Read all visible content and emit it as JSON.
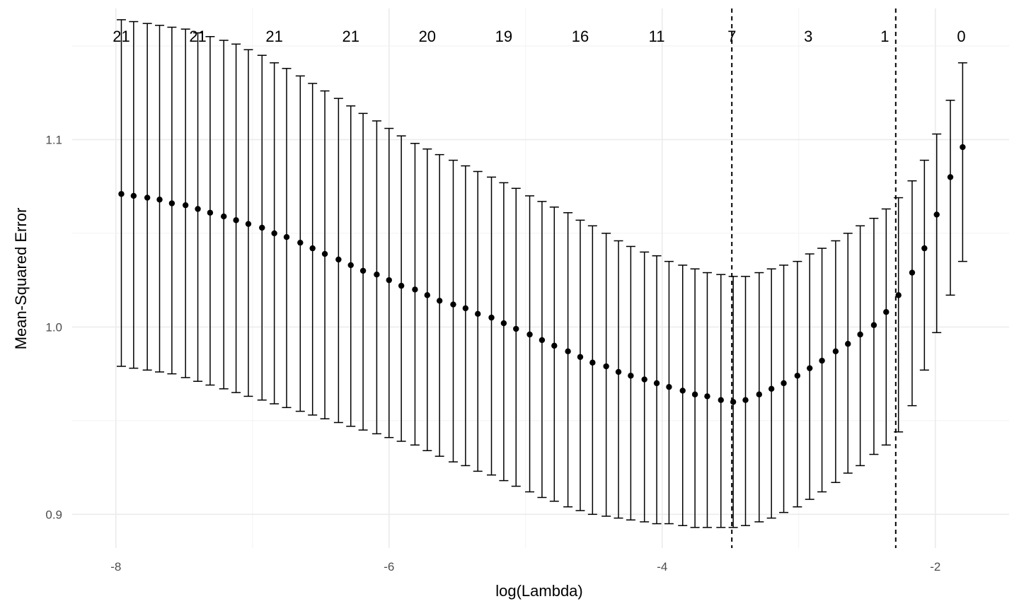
{
  "chart_data": {
    "type": "scatter",
    "title": "",
    "xlabel": "log(Lambda)",
    "ylabel": "Mean-Squared Error",
    "xlim": [
      -8.32,
      -1.46
    ],
    "ylim": [
      0.882,
      1.17
    ],
    "x_ticks": [
      -8,
      -6,
      -4,
      -2
    ],
    "x_tick_labels": [
      "-8",
      "-6",
      "-4",
      "-2"
    ],
    "y_ticks": [
      0.9,
      1.0,
      1.1
    ],
    "y_tick_labels": [
      "0.9",
      "1.0",
      "1.1"
    ],
    "x_minor_gridlines": [
      -7,
      -5,
      -3
    ],
    "y_minor_gridlines": [
      0.95,
      1.05,
      1.15
    ],
    "grid": true,
    "reference_lines": [
      {
        "name": "lambda-min",
        "x": -3.49,
        "style": "dashed"
      },
      {
        "name": "lambda-1se",
        "x": -2.29,
        "style": "dashed"
      }
    ],
    "top_labels": [
      {
        "x": -7.96,
        "label": "21"
      },
      {
        "x": -7.4,
        "label": "21"
      },
      {
        "x": -6.84,
        "label": "21"
      },
      {
        "x": -6.28,
        "label": "21"
      },
      {
        "x": -5.72,
        "label": "20"
      },
      {
        "x": -5.16,
        "label": "19"
      },
      {
        "x": -4.6,
        "label": "16"
      },
      {
        "x": -4.04,
        "label": "11"
      },
      {
        "x": -3.49,
        "label": "7"
      },
      {
        "x": -2.93,
        "label": "3"
      },
      {
        "x": -2.37,
        "label": "1"
      },
      {
        "x": -1.81,
        "label": "0"
      }
    ],
    "series": [
      {
        "name": "cv-mse",
        "x": [
          -7.96,
          -7.87,
          -7.77,
          -7.68,
          -7.59,
          -7.49,
          -7.4,
          -7.31,
          -7.21,
          -7.12,
          -7.03,
          -6.93,
          -6.84,
          -6.75,
          -6.65,
          -6.56,
          -6.47,
          -6.37,
          -6.28,
          -6.19,
          -6.09,
          -6.0,
          -5.91,
          -5.81,
          -5.72,
          -5.63,
          -5.53,
          -5.44,
          -5.35,
          -5.25,
          -5.16,
          -5.07,
          -4.97,
          -4.88,
          -4.79,
          -4.69,
          -4.6,
          -4.51,
          -4.41,
          -4.32,
          -4.23,
          -4.13,
          -4.04,
          -3.95,
          -3.85,
          -3.76,
          -3.67,
          -3.57,
          -3.48,
          -3.39,
          -3.29,
          -3.2,
          -3.11,
          -3.01,
          -2.92,
          -2.83,
          -2.73,
          -2.64,
          -2.55,
          -2.45,
          -2.36,
          -2.27,
          -2.17,
          -2.08,
          -1.99,
          -1.89,
          -1.8
        ],
        "y": [
          1.071,
          1.07,
          1.069,
          1.068,
          1.066,
          1.065,
          1.063,
          1.061,
          1.059,
          1.057,
          1.055,
          1.053,
          1.05,
          1.048,
          1.045,
          1.042,
          1.039,
          1.036,
          1.033,
          1.03,
          1.028,
          1.025,
          1.022,
          1.02,
          1.017,
          1.014,
          1.012,
          1.01,
          1.007,
          1.005,
          1.002,
          0.999,
          0.996,
          0.993,
          0.99,
          0.987,
          0.984,
          0.981,
          0.979,
          0.976,
          0.974,
          0.972,
          0.97,
          0.968,
          0.966,
          0.964,
          0.963,
          0.961,
          0.96,
          0.961,
          0.964,
          0.967,
          0.97,
          0.974,
          0.978,
          0.982,
          0.987,
          0.991,
          0.996,
          1.001,
          1.008,
          1.017,
          1.029,
          1.042,
          1.06,
          1.08,
          1.096
        ],
        "upper": [
          1.164,
          1.163,
          1.162,
          1.161,
          1.16,
          1.159,
          1.157,
          1.155,
          1.153,
          1.151,
          1.148,
          1.145,
          1.141,
          1.138,
          1.134,
          1.13,
          1.126,
          1.122,
          1.118,
          1.114,
          1.11,
          1.106,
          1.102,
          1.098,
          1.095,
          1.092,
          1.089,
          1.086,
          1.083,
          1.08,
          1.077,
          1.074,
          1.07,
          1.067,
          1.064,
          1.061,
          1.057,
          1.054,
          1.05,
          1.046,
          1.043,
          1.04,
          1.038,
          1.035,
          1.033,
          1.031,
          1.029,
          1.028,
          1.027,
          1.027,
          1.029,
          1.031,
          1.033,
          1.035,
          1.039,
          1.042,
          1.046,
          1.05,
          1.054,
          1.058,
          1.063,
          1.069,
          1.078,
          1.089,
          1.103,
          1.121,
          1.141
        ],
        "lower": [
          0.979,
          0.978,
          0.977,
          0.976,
          0.975,
          0.973,
          0.971,
          0.969,
          0.967,
          0.965,
          0.963,
          0.961,
          0.959,
          0.957,
          0.955,
          0.953,
          0.951,
          0.949,
          0.947,
          0.945,
          0.943,
          0.941,
          0.939,
          0.937,
          0.934,
          0.931,
          0.928,
          0.926,
          0.923,
          0.921,
          0.918,
          0.915,
          0.912,
          0.909,
          0.907,
          0.904,
          0.902,
          0.9,
          0.899,
          0.898,
          0.897,
          0.896,
          0.895,
          0.895,
          0.894,
          0.893,
          0.893,
          0.893,
          0.893,
          0.894,
          0.896,
          0.898,
          0.901,
          0.904,
          0.908,
          0.912,
          0.917,
          0.922,
          0.926,
          0.932,
          0.937,
          0.944,
          0.958,
          0.977,
          0.997,
          1.017,
          1.035
        ]
      }
    ]
  }
}
